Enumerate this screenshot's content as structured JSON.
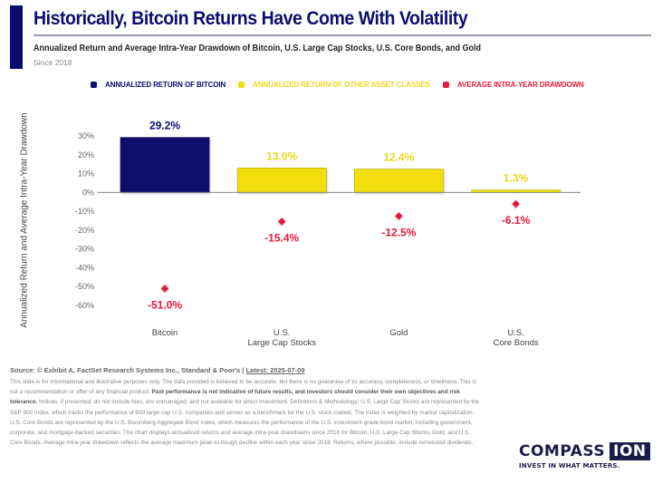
{
  "header": {
    "title": "Historically, Bitcoin Returns Have Come With Volatility",
    "subtitle": "Annualized Return and Average Intra-Year Drawdown of Bitcoin, U.S. Large Cap Stocks, U.S. Core Bonds, and Gold",
    "since": "Since 2018"
  },
  "legend": [
    {
      "label": "ANNUALIZED RETURN OF BITCOIN",
      "color": "#0a0a6e"
    },
    {
      "label": "ANNUALIZED RETURN OF OTHER ASSET CLASSES",
      "color": "#f2de0a"
    },
    {
      "label": "AVERAGE INTRA-YEAR DRAWDOWN",
      "color": "#e8193c"
    }
  ],
  "colors": {
    "bitcoin": "#0a0a6e",
    "other": "#f2de0a",
    "other_text": "#ecd81c",
    "drawdown": "#e8193c",
    "axis": "#8a8a8a"
  },
  "chart_data": {
    "type": "bar",
    "title": "Annualized Return and Average Intra-Year Drawdown of Bitcoin, U.S. Large Cap Stocks, U.S. Core Bonds, and Gold",
    "xlabel": "",
    "ylabel": "Annualized Return and Average Intra-Year Drawdown",
    "ylim": [
      -60,
      30
    ],
    "yticks": [
      30,
      20,
      10,
      0,
      -10,
      -20,
      -30,
      -40,
      -50,
      -60
    ],
    "ytick_labels": [
      "30%",
      "20%",
      "10%",
      "0%",
      "-10%",
      "-20%",
      "-30%",
      "-40%",
      "-50%",
      "-60%"
    ],
    "grid": false,
    "legend_position": "top",
    "categories": [
      [
        "Bitcoin"
      ],
      [
        "U.S.",
        "Large Cap Stocks"
      ],
      [
        "Gold"
      ],
      [
        "U.S.",
        "Core Bonds"
      ]
    ],
    "category_names": [
      "Bitcoin",
      "U.S. Large Cap Stocks",
      "Gold",
      "U.S. Core Bonds"
    ],
    "series": [
      {
        "name": "Annualized Return",
        "type": "bar",
        "values": [
          29.2,
          13.0,
          12.4,
          1.3
        ],
        "labels": [
          "29.2%",
          "13.0%",
          "12.4%",
          "1.3%"
        ]
      },
      {
        "name": "Average Intra-Year Drawdown",
        "type": "scatter",
        "values": [
          -51.0,
          -15.4,
          -12.5,
          -6.1
        ],
        "labels": [
          "-51.0%",
          "-15.4%",
          "-12.5%",
          "-6.1%"
        ]
      }
    ]
  },
  "footer": {
    "source_prefix": "Source: © Exhibit A, FactSet Research Systems Inc., Standard & Poor's | ",
    "source_latest": "Latest: 2025-07-09",
    "disclaimer_1": "This slide is for informational and illustrative purposes only. The data provided is believed to be accurate, but there is no guarantee of its accuracy, completeness, or timeliness. This is not a recommendation or offer of any financial product. ",
    "disclaimer_bold": "Past performance is not indicative of future results, and investors should consider their own objectives and risk tolerance.",
    "disclaimer_2": " Indices, if presented, do not include fees, are unmanaged, and not available for direct investment. Definitions & Methodology: U.S. Large Cap Stocks are represented by the S&P 500 Index, which tracks the performance of 500 large-cap U.S. companies and serves as a benchmark for the U.S. stock market. The index is weighted by market capitalization. U.S. Core Bonds are represented by the U.S. Bloomberg Aggregate Bond Index, which measures the performance of the U.S. investment-grade bond market, including government, corporate, and mortgage-backed securities. The chart displays annualized returns and average intra-year drawdowns since 2018 for Bitcoin, U.S. Large Cap Stocks, Gold, and U.S. Core Bonds. Average intra-year drawdown reflects the average maximum peak-to-trough decline within each year since 2018. Returns, where possible, include reinvested dividends."
  },
  "logo": {
    "word": "COMPASS",
    "box": "ION",
    "tagline": "INVEST IN WHAT MATTERS."
  }
}
